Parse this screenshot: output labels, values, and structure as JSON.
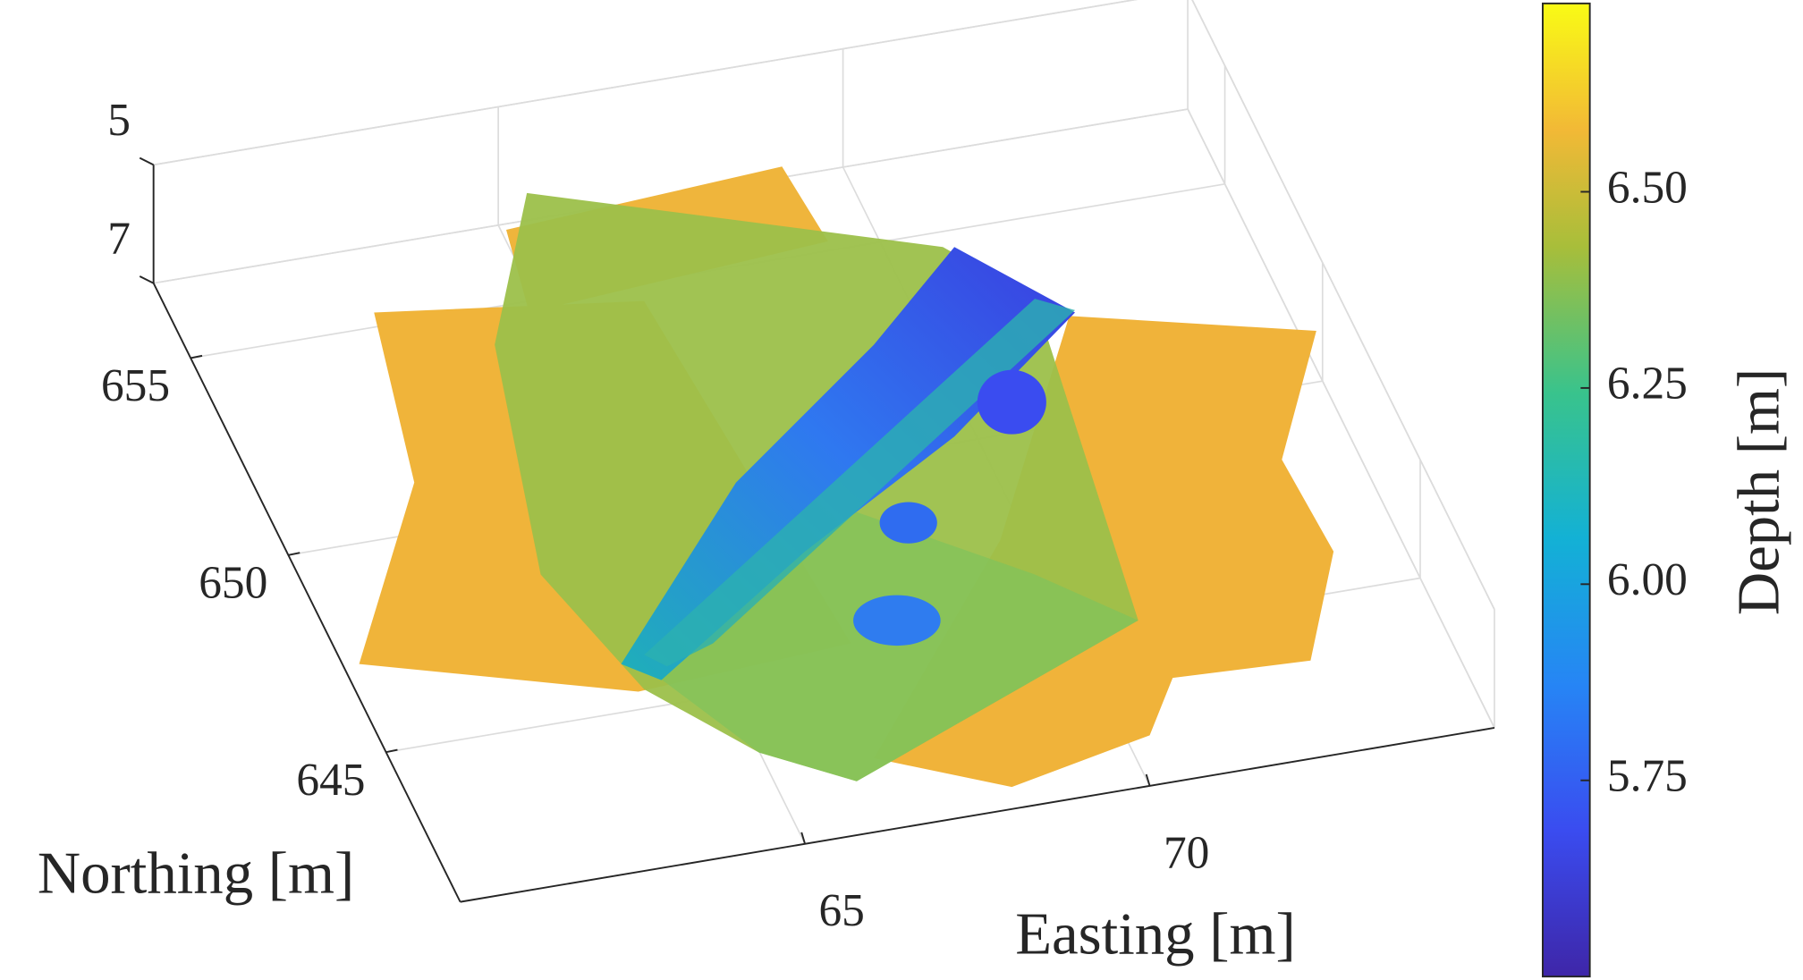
{
  "chart_data": {
    "type": "scatter3d",
    "xlabel": "Easting [m]",
    "ylabel": "Northing [m]",
    "colorbar_label": "Depth [m]",
    "xlim": [
      60,
      75
    ],
    "ylim": [
      641.2,
      656.9
    ],
    "zlim": [
      5,
      7
    ],
    "z_reversed": true,
    "xticks": [
      65,
      70
    ],
    "yticks": [
      645,
      650,
      655
    ],
    "zticks": [
      5,
      7
    ],
    "clim": [
      5.5,
      6.74
    ],
    "colormap": "parula",
    "cticks": [
      {
        "value": 5.75,
        "label": "5.75"
      },
      {
        "value": 6.0,
        "label": "6.00"
      },
      {
        "value": 6.25,
        "label": "6.25"
      },
      {
        "value": 6.5,
        "label": "6.50"
      }
    ],
    "grid": true
  }
}
